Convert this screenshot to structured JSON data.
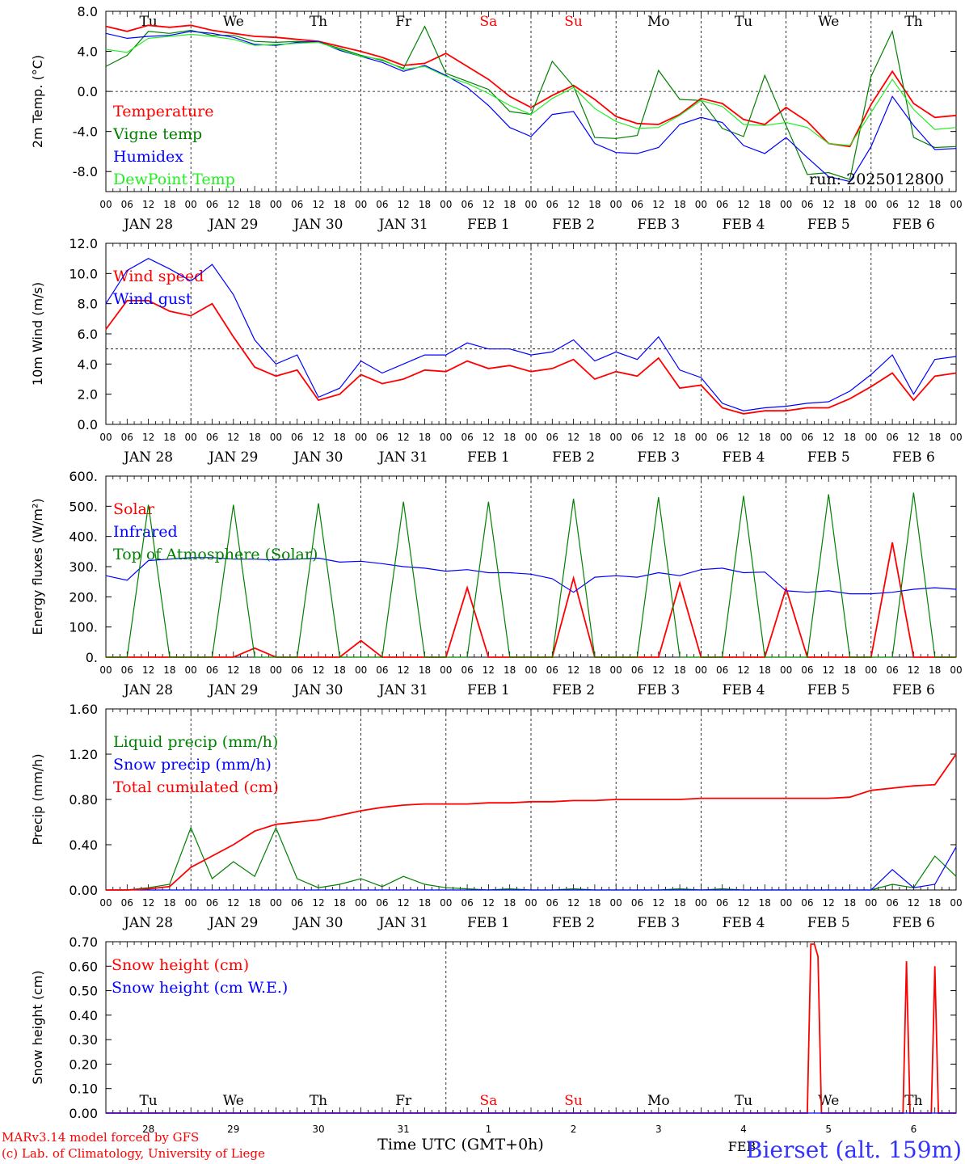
{
  "colors": {
    "red": "#ff0000",
    "green": "#008000",
    "blue": "#0000ff",
    "lightgreen": "#22ee22",
    "grid": "#000000"
  },
  "common": {
    "hour_ticks": [
      "00",
      "06",
      "12",
      "18"
    ],
    "last_hour": "00",
    "dates": [
      "JAN 28",
      "JAN 29",
      "JAN 30",
      "JAN 31",
      "FEB  1",
      "FEB  2",
      "FEB  3",
      "FEB  4",
      "FEB  5",
      "FEB  6"
    ],
    "days": [
      "Tu",
      "We",
      "Th",
      "Fr",
      "Sa",
      "Su",
      "Mo",
      "Tu",
      "We",
      "Th"
    ],
    "day_colors": [
      "#000000",
      "#000000",
      "#000000",
      "#000000",
      "#ff0000",
      "#ff0000",
      "#000000",
      "#000000",
      "#000000",
      "#000000"
    ],
    "bottom_day_numbers": [
      "28",
      "29",
      "30",
      "31",
      "1",
      "2",
      "3",
      "4",
      "5",
      "6"
    ],
    "bottom_month": "FEB",
    "xlabel": "Time UTC (GMT+0h)",
    "run_label": "run: 2025012800",
    "credit_line1": "MARv3.14 model forced by GFS",
    "credit_line2": "(c) Lab. of Climatology, University of Liege",
    "station": "Bierset (alt. 159m)"
  },
  "chart_data": [
    {
      "type": "line",
      "ylabel": "2m Temp. (°C)",
      "ylim": [
        -10,
        8
      ],
      "yticks": [
        "8.0",
        "4.0",
        "0.0",
        "-4.0",
        "-8.0"
      ],
      "ytick_values": [
        8,
        4,
        0,
        -4,
        -8
      ],
      "ref_line": 0,
      "x_hours": [
        0,
        6,
        12,
        18,
        24,
        30,
        36,
        42,
        48,
        54,
        60,
        66,
        72,
        78,
        84,
        90,
        96,
        102,
        108,
        114,
        120,
        126,
        132,
        138,
        144,
        150,
        156,
        162,
        168,
        174,
        180,
        186,
        192,
        198,
        204,
        210,
        216,
        222,
        228,
        234,
        240
      ],
      "series": [
        {
          "name": "Temperature",
          "color": "red",
          "values": [
            6.5,
            6.0,
            6.6,
            6.4,
            6.6,
            6.1,
            5.8,
            5.5,
            5.4,
            5.2,
            5.0,
            4.5,
            4.0,
            3.4,
            2.6,
            2.8,
            3.8,
            2.5,
            1.2,
            -0.5,
            -1.6,
            -0.4,
            0.6,
            -0.8,
            -2.5,
            -3.2,
            -3.3,
            -2.3,
            -0.7,
            -1.2,
            -2.8,
            -3.3,
            -1.6,
            -3.0,
            -5.2,
            -5.5,
            -1.3,
            2.0,
            -1.2,
            -2.6,
            -2.4
          ]
        },
        {
          "name": "Vigne temp",
          "color": "green",
          "values": [
            2.5,
            3.6,
            6.0,
            5.8,
            6.1,
            5.6,
            5.6,
            5.0,
            4.9,
            5.0,
            4.9,
            4.3,
            3.6,
            3.1,
            2.3,
            6.5,
            1.8,
            1.0,
            0.2,
            -2.0,
            -2.3,
            3.0,
            0.5,
            -4.6,
            -4.7,
            -4.4,
            2.1,
            -0.8,
            -0.9,
            -3.7,
            -4.5,
            1.6,
            -3.4,
            -8.3,
            -8.1,
            -8.8,
            1.5,
            6.0,
            -4.6,
            -5.6,
            -5.5
          ]
        },
        {
          "name": "Humidex",
          "color": "blue",
          "values": [
            5.8,
            5.3,
            5.5,
            5.6,
            6.0,
            5.8,
            5.4,
            4.7,
            4.6,
            4.9,
            5.0,
            4.1,
            3.5,
            2.9,
            2.0,
            2.6,
            1.6,
            0.4,
            -1.4,
            -3.6,
            -4.5,
            -2.3,
            -2.0,
            -5.2,
            -6.1,
            -6.2,
            -5.6,
            -3.3,
            -2.6,
            -3.1,
            -5.4,
            -6.2,
            -4.6,
            -6.6,
            -8.5,
            -9.0,
            -5.5,
            -0.5,
            -3.4,
            -5.8,
            -5.7
          ]
        },
        {
          "name": "DewPoint Temp",
          "color": "lightgreen",
          "values": [
            4.2,
            3.9,
            5.3,
            5.5,
            5.7,
            5.5,
            5.2,
            4.6,
            4.7,
            4.8,
            4.9,
            4.2,
            3.5,
            3.2,
            2.2,
            2.5,
            1.5,
            0.8,
            -0.2,
            -1.4,
            -2.3,
            -0.7,
            0.4,
            -1.7,
            -3.0,
            -3.7,
            -3.6,
            -2.4,
            -0.9,
            -1.5,
            -3.3,
            -3.4,
            -3.1,
            -3.6,
            -5.2,
            -5.4,
            -2.1,
            1.2,
            -1.8,
            -3.8,
            -3.6
          ]
        }
      ]
    },
    {
      "type": "line",
      "ylabel": "10m Wind (m/s)",
      "ylim": [
        0,
        12
      ],
      "yticks": [
        "12.0",
        "10.0",
        "8.0",
        "6.0",
        "4.0",
        "2.0",
        "0.0"
      ],
      "ytick_values": [
        12,
        10,
        8,
        6,
        4,
        2,
        0
      ],
      "ref_line": 5,
      "x_hours": [
        0,
        6,
        12,
        18,
        24,
        30,
        36,
        42,
        48,
        54,
        60,
        66,
        72,
        78,
        84,
        90,
        96,
        102,
        108,
        114,
        120,
        126,
        132,
        138,
        144,
        150,
        156,
        162,
        168,
        174,
        180,
        186,
        192,
        198,
        204,
        210,
        216,
        222,
        228,
        234,
        240
      ],
      "series": [
        {
          "name": "Wind speed",
          "color": "red",
          "values": [
            6.3,
            8.2,
            8.2,
            7.5,
            7.2,
            8.0,
            5.8,
            3.8,
            3.2,
            3.6,
            1.6,
            2.0,
            3.3,
            2.7,
            3.0,
            3.6,
            3.5,
            4.2,
            3.7,
            3.9,
            3.5,
            3.7,
            4.3,
            3.0,
            3.5,
            3.2,
            4.4,
            2.4,
            2.6,
            1.1,
            0.7,
            0.9,
            0.9,
            1.1,
            1.1,
            1.7,
            2.5,
            3.4,
            1.6,
            3.2,
            3.4
          ]
        },
        {
          "name": "Wind gust",
          "color": "blue",
          "values": [
            8.0,
            10.2,
            11.0,
            10.3,
            9.5,
            10.6,
            8.6,
            5.6,
            4.0,
            4.6,
            1.8,
            2.4,
            4.2,
            3.4,
            4.0,
            4.6,
            4.6,
            5.4,
            5.0,
            5.0,
            4.6,
            4.8,
            5.6,
            4.2,
            4.8,
            4.3,
            5.8,
            3.6,
            3.1,
            1.4,
            0.9,
            1.1,
            1.2,
            1.4,
            1.5,
            2.2,
            3.3,
            4.6,
            2.0,
            4.3,
            4.5
          ]
        }
      ]
    },
    {
      "type": "line",
      "ylabel": "Energy fluxes (W/m²)",
      "ylim": [
        0,
        600
      ],
      "yticks": [
        "600.",
        "500.",
        "400.",
        "300.",
        "200.",
        "100.",
        "0."
      ],
      "ytick_values": [
        600,
        500,
        400,
        300,
        200,
        100,
        0
      ],
      "x_hours": [
        0,
        6,
        12,
        18,
        24,
        30,
        36,
        42,
        48,
        54,
        60,
        66,
        72,
        78,
        84,
        90,
        96,
        102,
        108,
        114,
        120,
        126,
        132,
        138,
        144,
        150,
        156,
        162,
        168,
        174,
        180,
        186,
        192,
        198,
        204,
        210,
        216,
        222,
        228,
        234,
        240
      ],
      "series": [
        {
          "name": "Solar",
          "color": "red",
          "values": [
            0,
            0,
            0,
            0,
            0,
            0,
            0,
            30,
            0,
            0,
            0,
            0,
            55,
            0,
            0,
            0,
            0,
            230,
            0,
            0,
            0,
            0,
            262,
            0,
            0,
            0,
            0,
            245,
            0,
            0,
            0,
            0,
            228,
            0,
            0,
            0,
            0,
            380,
            0,
            0,
            0
          ]
        },
        {
          "name": "Infrared",
          "color": "blue",
          "values": [
            270,
            255,
            320,
            325,
            330,
            330,
            325,
            325,
            322,
            325,
            328,
            315,
            318,
            310,
            300,
            295,
            285,
            290,
            280,
            280,
            275,
            260,
            215,
            265,
            270,
            265,
            280,
            270,
            290,
            295,
            280,
            282,
            220,
            215,
            220,
            210,
            210,
            215,
            225,
            230,
            225
          ]
        },
        {
          "name": "Top of Atmosphere (Solar)",
          "color": "green",
          "values": [
            0,
            0,
            505,
            0,
            0,
            0,
            505,
            0,
            0,
            0,
            510,
            0,
            0,
            0,
            515,
            0,
            0,
            0,
            515,
            0,
            0,
            0,
            525,
            0,
            0,
            0,
            530,
            0,
            0,
            0,
            535,
            0,
            0,
            0,
            540,
            0,
            0,
            0,
            545,
            0,
            0
          ]
        }
      ]
    },
    {
      "type": "line",
      "ylabel": "Precip (mm/h)",
      "ylim": [
        0,
        1.6
      ],
      "yticks": [
        "1.60",
        "1.20",
        "0.80",
        "0.40",
        "0.00"
      ],
      "ytick_values": [
        1.6,
        1.2,
        0.8,
        0.4,
        0.0
      ],
      "x_hours": [
        0,
        6,
        12,
        18,
        24,
        30,
        36,
        42,
        48,
        54,
        60,
        66,
        72,
        78,
        84,
        90,
        96,
        102,
        108,
        114,
        120,
        126,
        132,
        138,
        144,
        150,
        156,
        162,
        168,
        174,
        180,
        186,
        192,
        198,
        204,
        210,
        216,
        222,
        228,
        234,
        240
      ],
      "series": [
        {
          "name": "Liquid precip (mm/h)",
          "color": "green",
          "values": [
            0,
            0,
            0.02,
            0.05,
            0.55,
            0.1,
            0.25,
            0.12,
            0.55,
            0.1,
            0.02,
            0.05,
            0.1,
            0.03,
            0.12,
            0.05,
            0.02,
            0.01,
            0.0,
            0.01,
            0.0,
            0.0,
            0.01,
            0.0,
            0.0,
            0.0,
            0.0,
            0.01,
            0.0,
            0.01,
            0.0,
            0.0,
            0.0,
            0.0,
            0.0,
            0.0,
            0.0,
            0.05,
            0.02,
            0.3,
            0.12
          ]
        },
        {
          "name": "Snow precip (mm/h)",
          "color": "blue",
          "values": [
            0,
            0,
            0,
            0,
            0,
            0,
            0,
            0,
            0,
            0,
            0,
            0,
            0,
            0,
            0,
            0,
            0,
            0,
            0,
            0,
            0,
            0,
            0,
            0,
            0,
            0,
            0,
            0,
            0,
            0,
            0,
            0,
            0,
            0,
            0,
            0,
            0,
            0.18,
            0.02,
            0.05,
            0.38
          ]
        },
        {
          "name": "Total cumulated (cm)",
          "color": "red",
          "values": [
            0,
            0,
            0.01,
            0.03,
            0.2,
            0.3,
            0.4,
            0.52,
            0.58,
            0.6,
            0.62,
            0.66,
            0.7,
            0.73,
            0.75,
            0.76,
            0.76,
            0.76,
            0.77,
            0.77,
            0.78,
            0.78,
            0.79,
            0.79,
            0.8,
            0.8,
            0.8,
            0.8,
            0.81,
            0.81,
            0.81,
            0.81,
            0.81,
            0.81,
            0.81,
            0.82,
            0.88,
            0.9,
            0.92,
            0.93,
            1.2
          ]
        }
      ]
    },
    {
      "type": "line",
      "ylabel": "Snow height (cm)",
      "ylim": [
        0,
        0.7
      ],
      "yticks": [
        "0.70",
        "0.60",
        "0.50",
        "0.40",
        "0.30",
        "0.20",
        "0.10",
        "0.00"
      ],
      "ytick_values": [
        0.7,
        0.6,
        0.5,
        0.4,
        0.3,
        0.2,
        0.1,
        0.0
      ],
      "x_hours": [
        0,
        198,
        199,
        200,
        201,
        202,
        203,
        225,
        226,
        227,
        228,
        233,
        234,
        235,
        236,
        240
      ],
      "series": [
        {
          "name": "Snow height (cm)",
          "color": "red",
          "values": [
            0,
            0,
            0.69,
            0.69,
            0.64,
            0,
            0,
            0,
            0.62,
            0,
            0,
            0,
            0.6,
            0,
            0,
            0
          ]
        },
        {
          "name": "Snow height (cm W.E.)",
          "color": "blue",
          "values": [
            0,
            0,
            0,
            0,
            0,
            0,
            0,
            0,
            0,
            0,
            0,
            0,
            0,
            0,
            0,
            0
          ]
        }
      ]
    }
  ]
}
